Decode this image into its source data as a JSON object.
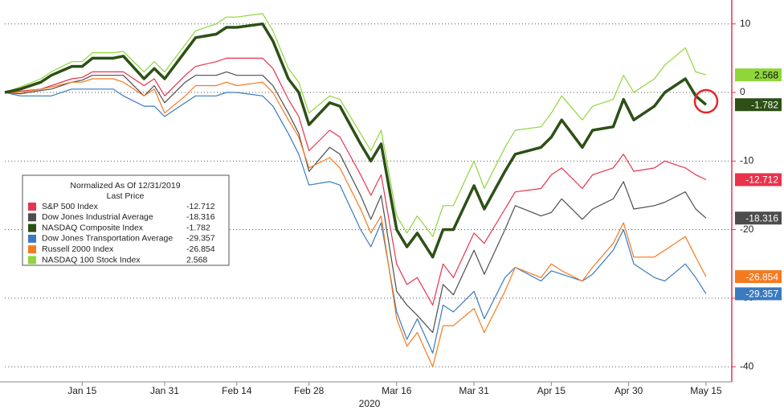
{
  "chart_data": {
    "type": "line",
    "legend_title": "Normalized As Of 12/31/2019",
    "legend_subtitle": "Last Price",
    "xlabel": "2020",
    "x": [
      "2019-12-31",
      "2020-01-03",
      "2020-01-07",
      "2020-01-09",
      "2020-01-13",
      "2020-01-15",
      "2020-01-17",
      "2020-01-21",
      "2020-01-23",
      "2020-01-27",
      "2020-01-29",
      "2020-01-31",
      "2020-02-04",
      "2020-02-06",
      "2020-02-10",
      "2020-02-12",
      "2020-02-14",
      "2020-02-19",
      "2020-02-21",
      "2020-02-24",
      "2020-02-26",
      "2020-02-28",
      "2020-03-03",
      "2020-03-05",
      "2020-03-09",
      "2020-03-11",
      "2020-03-13",
      "2020-03-16",
      "2020-03-18",
      "2020-03-20",
      "2020-03-23",
      "2020-03-25",
      "2020-03-27",
      "2020-03-31",
      "2020-04-02",
      "2020-04-06",
      "2020-04-08",
      "2020-04-13",
      "2020-04-15",
      "2020-04-17",
      "2020-04-21",
      "2020-04-23",
      "2020-04-27",
      "2020-04-29",
      "2020-05-01",
      "2020-05-05",
      "2020-05-07",
      "2020-05-11",
      "2020-05-13",
      "2020-05-15"
    ],
    "xlim": [
      "2019-12-31",
      "2020-05-20"
    ],
    "xticks": [
      {
        "value": "2020-01-15",
        "label": "Jan 15"
      },
      {
        "value": "2020-01-31",
        "label": "Jan 31"
      },
      {
        "value": "2020-02-14",
        "label": "Feb 14"
      },
      {
        "value": "2020-02-28",
        "label": "Feb 28"
      },
      {
        "value": "2020-03-16",
        "label": "Mar 16"
      },
      {
        "value": "2020-03-31",
        "label": "Mar 31"
      },
      {
        "value": "2020-04-15",
        "label": "Apr 15"
      },
      {
        "value": "2020-04-30",
        "label": "Apr 30"
      },
      {
        "value": "2020-05-15",
        "label": "May 15"
      }
    ],
    "ylim": [
      -42.2,
      12.9
    ],
    "yticks": [
      10,
      0,
      -10,
      -20,
      -30,
      -40
    ],
    "grid": true,
    "axis_color": "#e8334d",
    "series": [
      {
        "name": "S&P 500 Index",
        "color": "#e8334d",
        "line_width": 1.2,
        "values": [
          0,
          0.2,
          0.5,
          1,
          2,
          2.2,
          3,
          3,
          3,
          1,
          2,
          -0.5,
          2.5,
          3.8,
          4.5,
          5,
          5,
          5,
          3.5,
          -1,
          -3.5,
          -8.5,
          -5.5,
          -6.5,
          -12,
          -15,
          -12,
          -25,
          -28,
          -27,
          -31,
          -25,
          -27,
          -20.5,
          -22,
          -17,
          -14.5,
          -14,
          -12,
          -11,
          -14,
          -12,
          -11,
          -9,
          -11.5,
          -11,
          -10,
          -11,
          -12,
          -12.712
        ]
      },
      {
        "name": "Dow Jones Industrial Average",
        "color": "#4d4d4d",
        "line_width": 1.2,
        "values": [
          0,
          -0.2,
          0.3,
          0.5,
          1.5,
          1.8,
          2.5,
          2.5,
          2.5,
          -0.5,
          1,
          -1.5,
          1.5,
          2.5,
          2.5,
          3,
          2.5,
          2.5,
          1,
          -3,
          -6,
          -11.5,
          -8,
          -9,
          -15,
          -18.5,
          -15,
          -29,
          -31,
          -32.5,
          -35,
          -28,
          -29.5,
          -23,
          -26.5,
          -20,
          -16.5,
          -18,
          -17.5,
          -15.5,
          -18.5,
          -17,
          -15.5,
          -13,
          -17,
          -16.5,
          -16,
          -14.5,
          -17,
          -18.316
        ]
      },
      {
        "name": "NASDAQ Composite Index",
        "color": "#2d5016",
        "line_width": 3.5,
        "values": [
          0,
          0.5,
          1.5,
          2.5,
          3.8,
          3.8,
          5,
          5,
          5.3,
          2,
          3.5,
          2,
          6,
          8,
          8.5,
          9.5,
          9.5,
          10,
          7.5,
          2,
          0,
          -4.7,
          -1.5,
          -2,
          -7.5,
          -10,
          -7.5,
          -20,
          -22.5,
          -20.5,
          -24,
          -20,
          -20,
          -13.6,
          -17,
          -11.5,
          -9,
          -8,
          -6.5,
          -4,
          -8,
          -5.5,
          -5,
          -1,
          -4,
          -2,
          0,
          2,
          -0.5,
          -1.782
        ]
      },
      {
        "name": "Dow Jones Transportation Average",
        "color": "#3a7abf",
        "line_width": 1.2,
        "values": [
          0,
          -0.5,
          -0.5,
          -0.5,
          0.5,
          0.5,
          0.5,
          0.5,
          -0.5,
          -2,
          -2,
          -3.5,
          -1.5,
          -0.5,
          -0.5,
          0,
          0,
          -0.5,
          -2,
          -6,
          -9,
          -13.5,
          -13,
          -13.5,
          -20,
          -22.5,
          -19,
          -32,
          -36,
          -33,
          -38,
          -31,
          -32,
          -29,
          -33,
          -27,
          -25.5,
          -27.5,
          -26,
          -26.5,
          -27.5,
          -26.5,
          -23,
          -20,
          -25,
          -27,
          -27.5,
          -25,
          -27,
          -29.357
        ]
      },
      {
        "name": "Russell 2000 Index",
        "color": "#f47a20",
        "line_width": 1.2,
        "values": [
          0,
          0,
          0.5,
          0.8,
          1.5,
          1.5,
          2,
          2,
          1.5,
          -0.5,
          0.5,
          -3,
          -0.5,
          1,
          1,
          1.5,
          1,
          1.5,
          0,
          -4,
          -6.5,
          -11,
          -9.5,
          -11,
          -17,
          -20.5,
          -18,
          -33,
          -37,
          -35,
          -40,
          -34,
          -34,
          -31.5,
          -35,
          -29,
          -25.5,
          -27,
          -25,
          -26,
          -27.5,
          -25.5,
          -22,
          -19,
          -24,
          -24,
          -23,
          -21,
          -24,
          -26.854
        ]
      },
      {
        "name": "NASDAQ 100 Stock Index",
        "color": "#8fd63a",
        "line_width": 1.2,
        "values": [
          0,
          0.8,
          2,
          3,
          4.5,
          4.5,
          5.8,
          5.8,
          6,
          3,
          4.5,
          3,
          7,
          9,
          10,
          11,
          11,
          11.5,
          9,
          3.5,
          1.5,
          -3,
          -0.5,
          -1,
          -6,
          -8.5,
          -5.5,
          -18,
          -20.5,
          -18,
          -21,
          -16.5,
          -16.5,
          -10,
          -14,
          -8,
          -5.5,
          -5,
          -3,
          -0.5,
          -4,
          -2,
          -1,
          2.5,
          0,
          2,
          4,
          6.5,
          3,
          2.568
        ]
      }
    ]
  }
}
